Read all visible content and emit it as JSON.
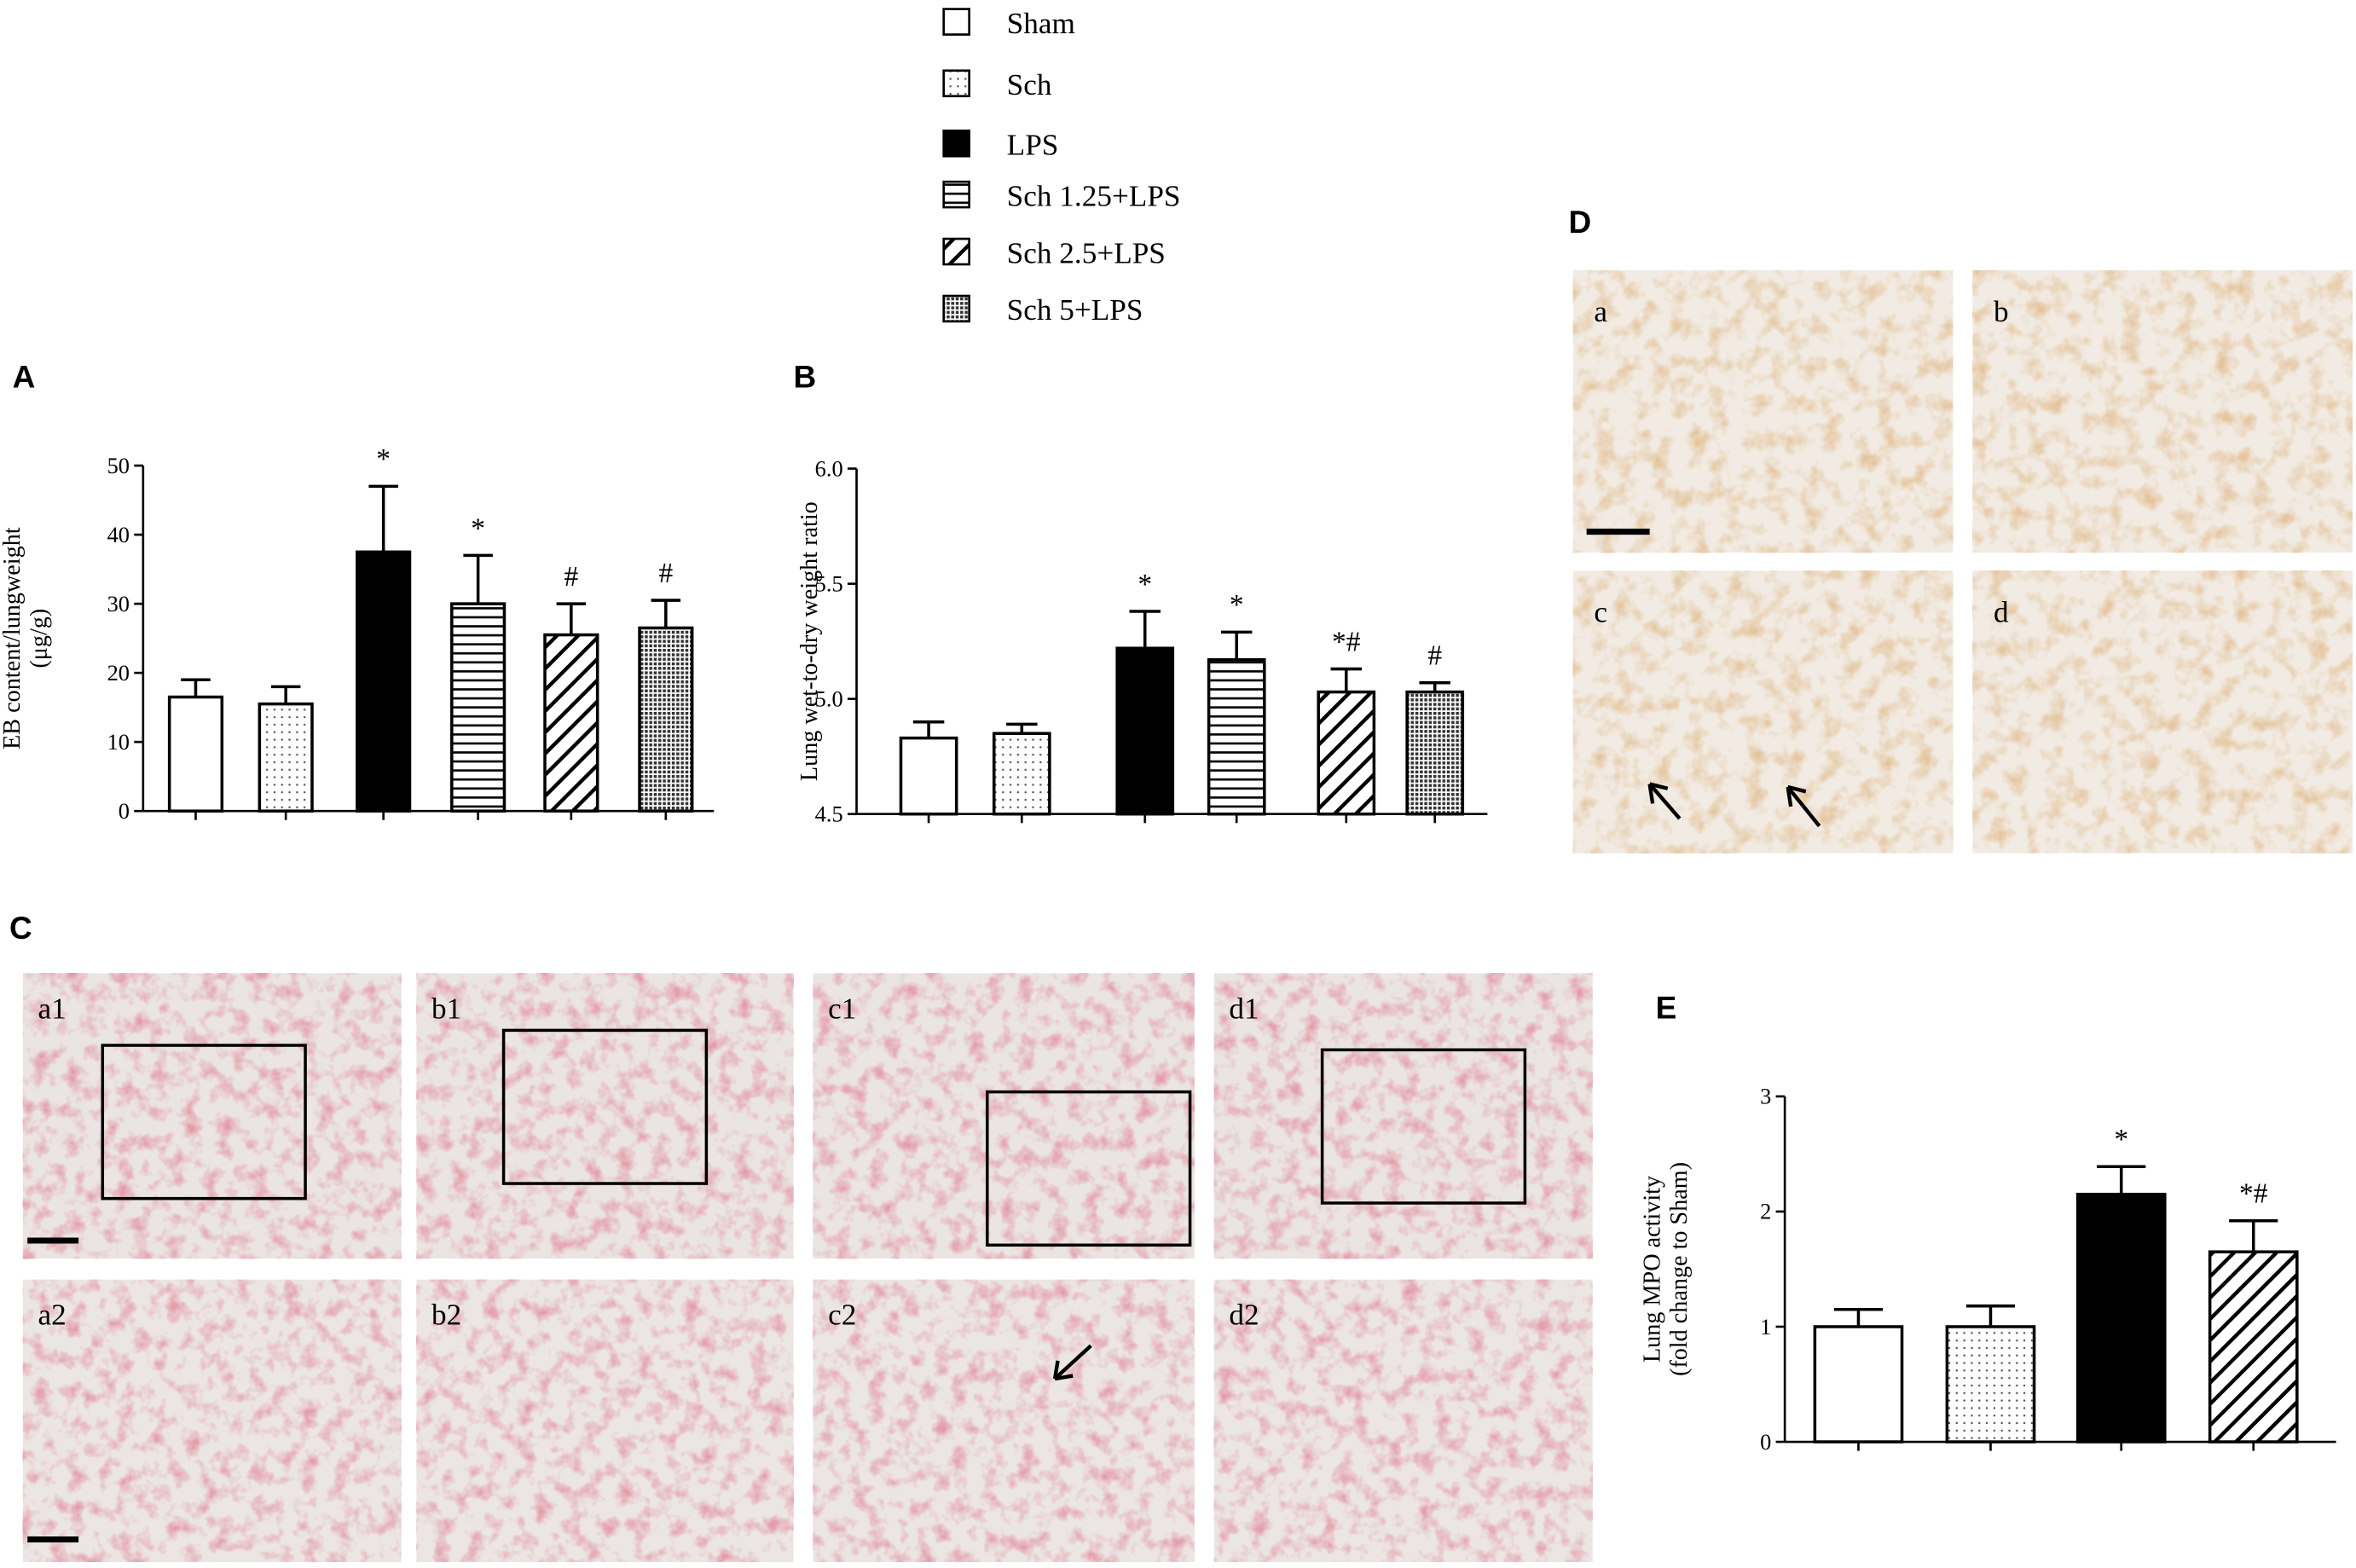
{
  "panel_letters": {
    "A": "A",
    "B": "B",
    "C": "C",
    "D": "D",
    "E": "E"
  },
  "legend": {
    "items": [
      {
        "name": "Sham",
        "style": "open"
      },
      {
        "name": "Sch",
        "style": "dots"
      },
      {
        "name": "LPS",
        "style": "solid"
      },
      {
        "name": "Sch 1.25+LPS",
        "style": "hlines"
      },
      {
        "name": "Sch 2.5+LPS",
        "style": "diag"
      },
      {
        "name": "Sch 5+LPS",
        "style": "dense"
      }
    ]
  },
  "chart_data": [
    {
      "type": "bar",
      "ylabel": [
        "EB content/lungweight",
        "(μg/g)"
      ],
      "categories": [
        null,
        null,
        null,
        null,
        null,
        null
      ],
      "styles": [
        "open",
        "dots",
        "solid",
        "hlines",
        "diag",
        "dense"
      ],
      "values": [
        16.5,
        15.5,
        37.5,
        30,
        25.5,
        26.5
      ],
      "errors": [
        2.5,
        2.5,
        9.5,
        7,
        4.5,
        4
      ],
      "annotations": [
        null,
        null,
        "*",
        "*",
        "#",
        "#"
      ],
      "ylim": [
        0,
        50
      ],
      "yticks": [
        0,
        10,
        20,
        30,
        40,
        50
      ]
    },
    {
      "type": "bar",
      "ylabel": [
        "Lung wet-to-dry weight ratio"
      ],
      "categories": [
        null,
        null,
        null,
        null,
        null,
        null
      ],
      "styles": [
        "open",
        "dots",
        "solid",
        "hlines",
        "diag",
        "dense"
      ],
      "values": [
        4.83,
        4.85,
        5.22,
        5.17,
        5.03,
        5.03
      ],
      "errors": [
        0.07,
        0.04,
        0.16,
        0.12,
        0.1,
        0.04
      ],
      "annotations": [
        null,
        null,
        "*",
        "*",
        "*#",
        "#"
      ],
      "ylim": [
        4.5,
        6.0
      ],
      "yticks": [
        4.5,
        {
          "value": 5,
          "label": "5.0"
        },
        5.5,
        {
          "value": 6,
          "label": "6.0"
        }
      ]
    },
    {
      "type": "bar",
      "ylabel": [
        "Lung MPO activity",
        "(fold change to Sham)"
      ],
      "categories": [
        null,
        null,
        null,
        null
      ],
      "styles": [
        "open",
        "dots",
        "solid",
        "diag"
      ],
      "values": [
        1.0,
        1.0,
        2.15,
        1.65
      ],
      "errors": [
        0.15,
        0.18,
        0.24,
        0.27
      ],
      "annotations": [
        null,
        null,
        "*",
        "*#"
      ],
      "ylim": [
        0,
        3
      ],
      "yticks": [
        0,
        1,
        2,
        3
      ]
    }
  ],
  "micrographs_C": {
    "labels": [
      "a1",
      "b1",
      "c1",
      "d1",
      "a2",
      "b2",
      "c2",
      "d2"
    ]
  },
  "micrographs_D": {
    "labels": [
      "a",
      "b",
      "c",
      "d"
    ]
  }
}
